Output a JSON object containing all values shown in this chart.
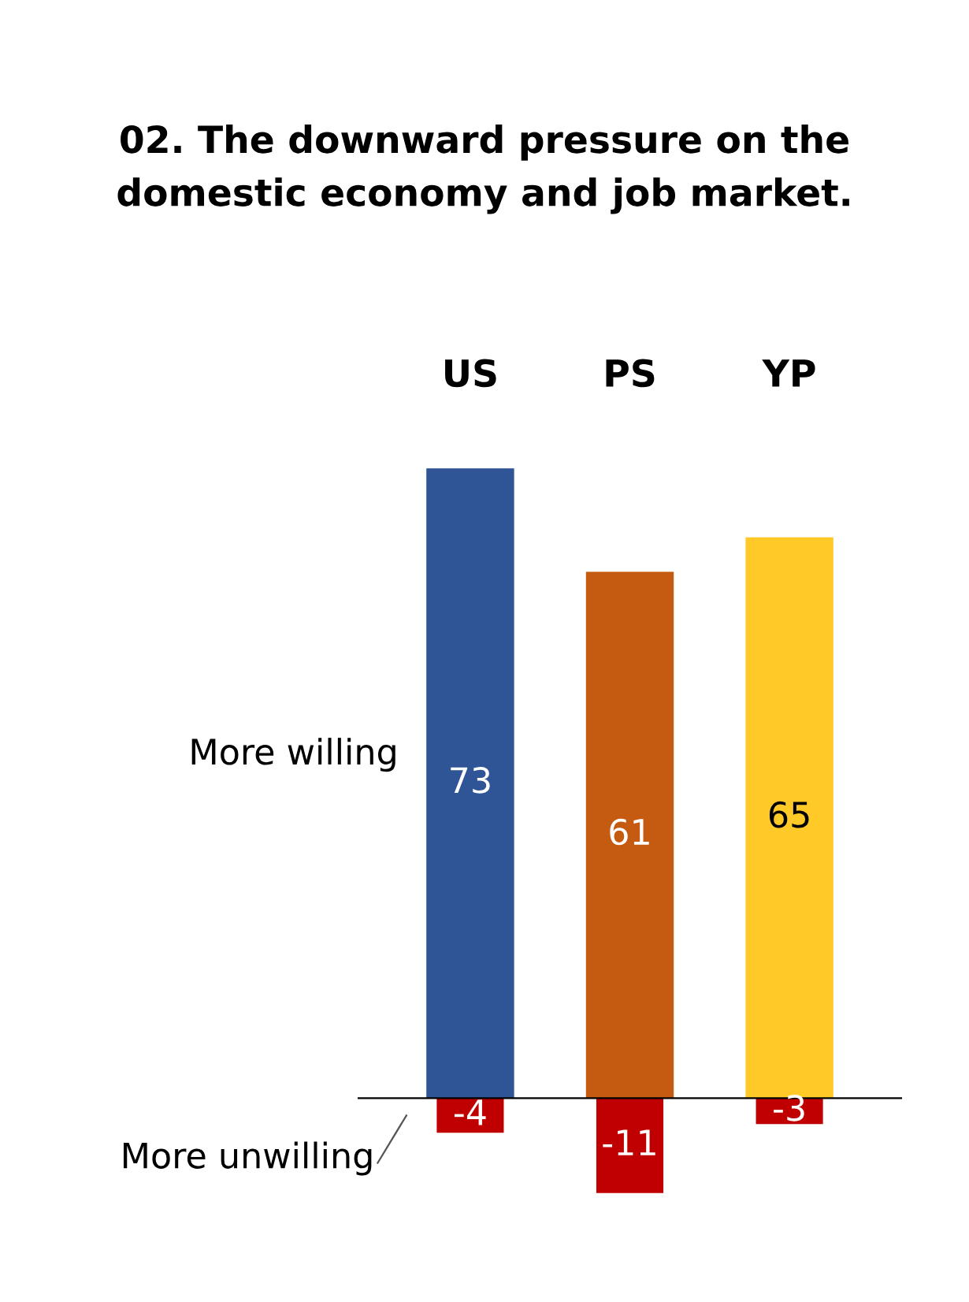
{
  "chart_data": {
    "type": "bar",
    "title": "02. The downward pressure on the\ndomestic economy and job market.",
    "categories": [
      "US",
      "PS",
      "YP"
    ],
    "data_labels": true,
    "series": [
      {
        "name": "More willing",
        "colors": [
          "#2f5597",
          "#c55a11",
          "#ffca28"
        ],
        "values": [
          73,
          61,
          65
        ]
      },
      {
        "name": "More unwilling",
        "color": "#c00000",
        "values": [
          -4,
          -11,
          -3
        ]
      }
    ]
  }
}
